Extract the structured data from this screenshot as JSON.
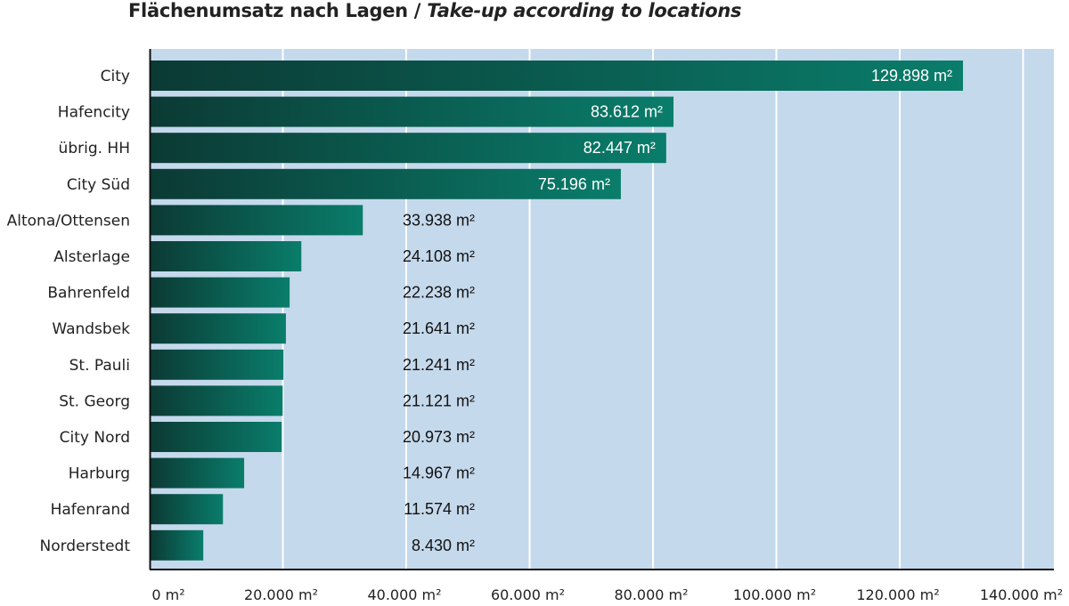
{
  "chart_data": {
    "type": "bar",
    "orientation": "horizontal",
    "title": "Flächenumsatz nach Lagen",
    "title_en": "Take-up according to locations",
    "categories": [
      "City",
      "Hafencity",
      "übrig. HH",
      "City Süd",
      "Altona/Ottensen",
      "Alsterlage",
      "Bahrenfeld",
      "Wandsbek",
      "St. Pauli",
      "St. Georg",
      "City Nord",
      "Harburg",
      "Hafenrand",
      "Norderstedt"
    ],
    "values": [
      129898,
      83612,
      82447,
      75196,
      33938,
      24108,
      22238,
      21641,
      21241,
      21121,
      20973,
      14967,
      11574,
      8430
    ],
    "data_labels": [
      "129.898 m²",
      "83.612 m²",
      "82.447 m²",
      "75.196 m²",
      "33.938 m²",
      "24.108 m²",
      "22.238 m²",
      "21.641 m²",
      "21.241 m²",
      "21.121 m²",
      "20.973 m²",
      "14.967 m²",
      "11.574 m²",
      "8.430 m²"
    ],
    "xlim": [
      0,
      140000
    ],
    "x_ticks": [
      "0 m²",
      "20.000 m²",
      "40.000 m²",
      "60.000 m²",
      "80.000 m²",
      "100.000 m²",
      "120.000 m²",
      "140.000 m²"
    ],
    "grid": true,
    "colors": {
      "bar_dark": "#0b3a34",
      "bar_light": "#0a7d6b",
      "plot_bg": "#c5d9ec",
      "grid": "#ffffff"
    }
  }
}
